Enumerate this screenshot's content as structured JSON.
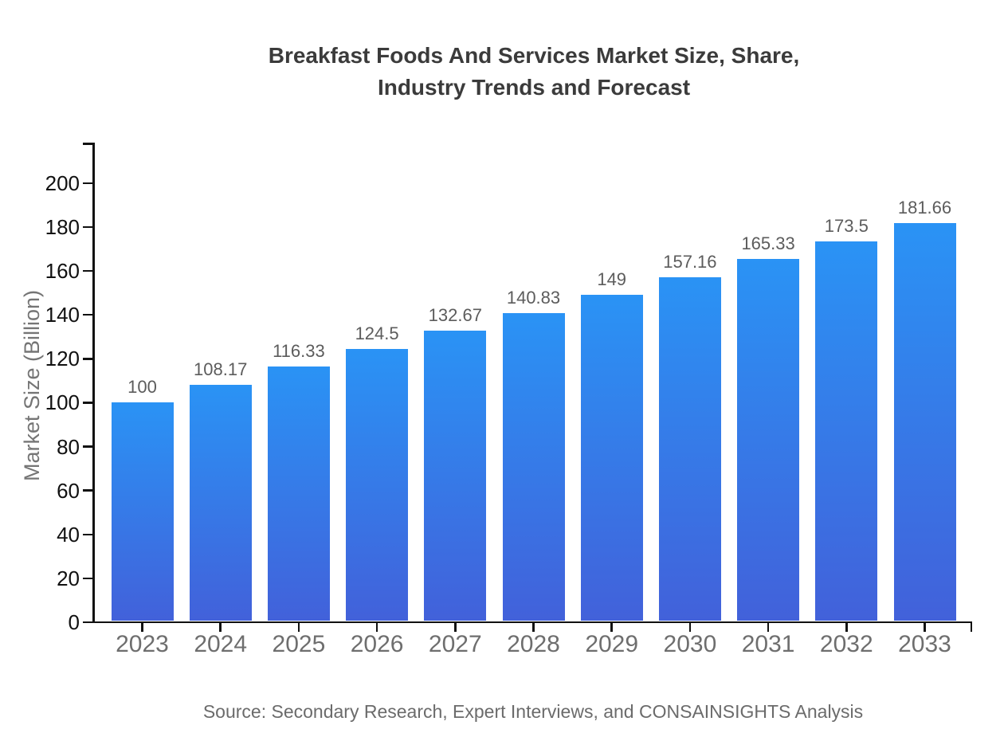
{
  "header": {
    "title_line1": "Breakfast Foods And Services Market Size, Share,",
    "title_line2": "Industry Trends and Forecast"
  },
  "chart_data": {
    "type": "bar",
    "title": "Breakfast Foods And Services Market Size, Share, Industry Trends and Forecast",
    "categories": [
      "2023",
      "2024",
      "2025",
      "2026",
      "2027",
      "2028",
      "2029",
      "2030",
      "2031",
      "2032",
      "2033"
    ],
    "values": [
      100,
      108.17,
      116.33,
      124.5,
      132.67,
      140.83,
      149,
      157.16,
      165.33,
      173.5,
      181.66
    ],
    "xlabel": "",
    "ylabel": "Market Size (Billion)",
    "ylim": [
      0,
      218
    ],
    "y_ticks": [
      0,
      20,
      40,
      60,
      80,
      100,
      120,
      140,
      160,
      180,
      200
    ],
    "grid": false,
    "legend": false,
    "colors": {
      "bar_gradient_top": "#2a93f5",
      "bar_gradient_bottom": "#4261da",
      "axis": "#111111",
      "y_tick_label": "#111111",
      "x_tick_label": "#6e6e6e",
      "value_label": "#5c5c5c",
      "title": "#3b3b3b",
      "y_axis_label": "#757575",
      "source": "#6b6b6b"
    }
  },
  "footer": {
    "source_note": "Source: Secondary Research, Expert Interviews, and CONSAINSIGHTS Analysis"
  }
}
